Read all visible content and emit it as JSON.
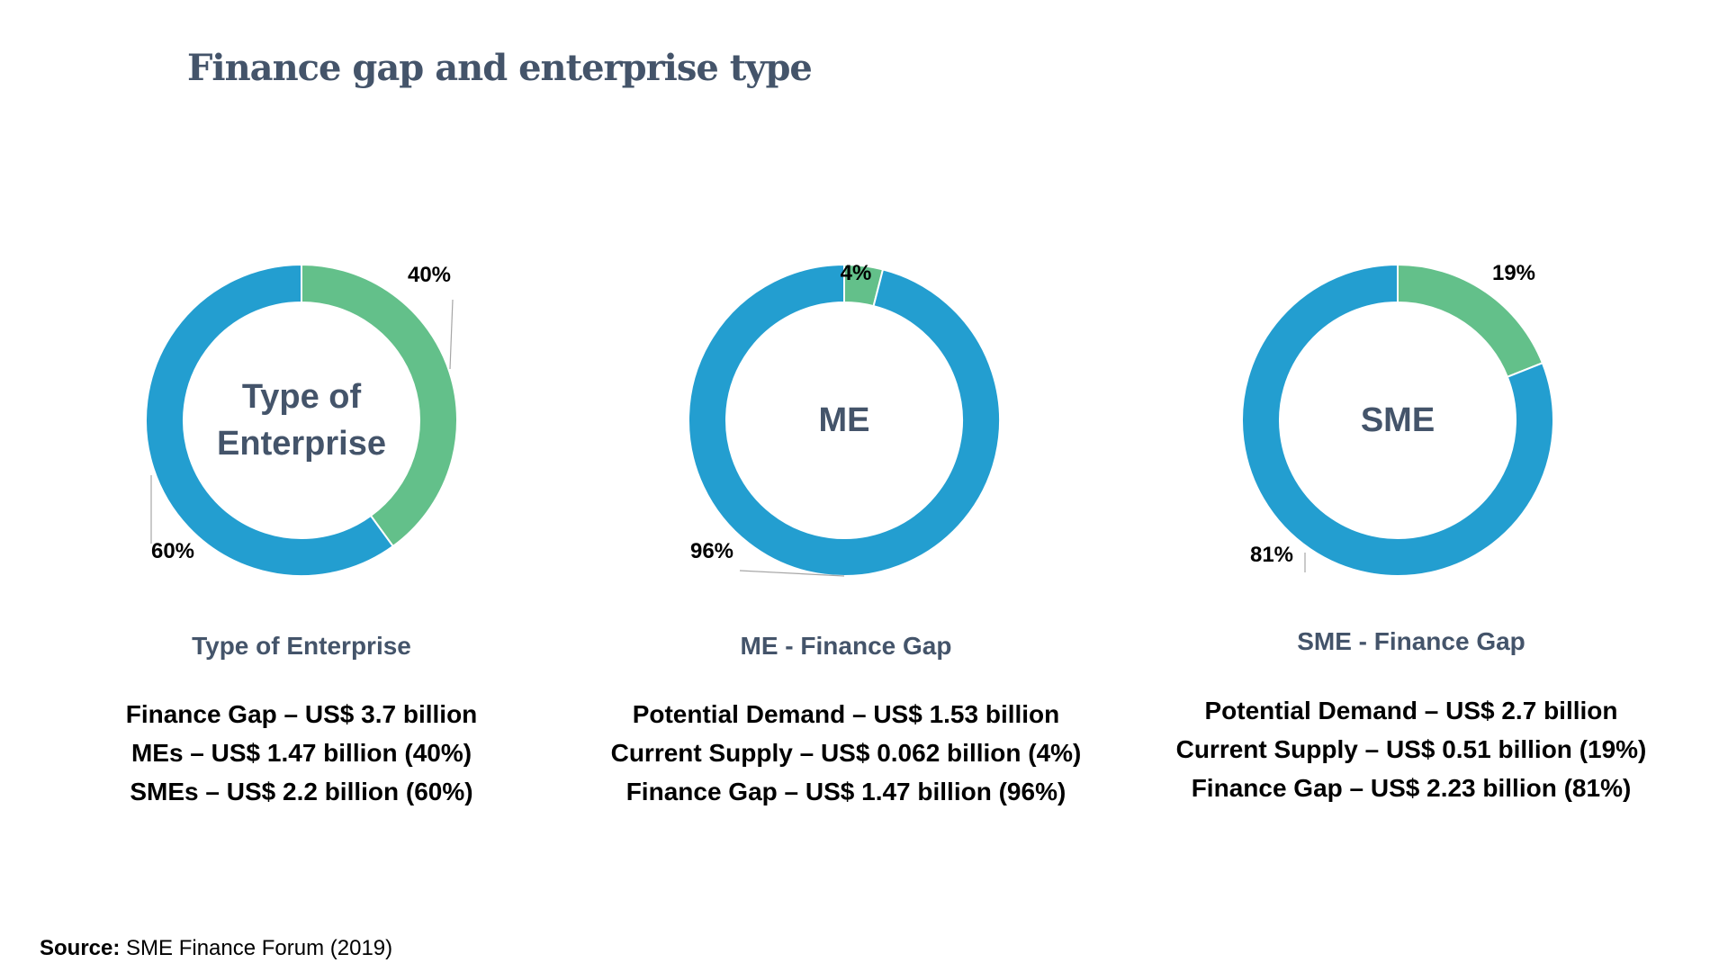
{
  "page": {
    "title": "Finance gap and enterprise type",
    "source_label": "Source:",
    "source_text": " SME Finance Forum (2019)"
  },
  "colors": {
    "blue": "#239ed0",
    "green": "#63c08a",
    "title": "#44546a",
    "center_text": "#44546a"
  },
  "chart_data": [
    {
      "type": "pie",
      "donut": true,
      "center_label_lines": [
        "Type of",
        "Enterprise"
      ],
      "title": "Type of Enterprise",
      "slices": [
        {
          "value": 40,
          "label": "40%",
          "color": "#63c08a"
        },
        {
          "value": 60,
          "label": "60%",
          "color": "#239ed0"
        }
      ],
      "summary": [
        "Finance Gap – US$ 3.7 billion",
        "MEs – US$ 1.47 billion (40%)",
        "SMEs – US$ 2.2 billion (60%)"
      ]
    },
    {
      "type": "pie",
      "donut": true,
      "center_label_lines": [
        "ME"
      ],
      "title": "ME - Finance Gap",
      "slices": [
        {
          "value": 4,
          "label": "4%",
          "color": "#63c08a"
        },
        {
          "value": 96,
          "label": "96%",
          "color": "#239ed0"
        }
      ],
      "summary": [
        "Potential Demand – US$ 1.53 billion",
        "Current Supply – US$ 0.062 billion (4%)",
        "Finance Gap – US$ 1.47 billion (96%)"
      ]
    },
    {
      "type": "pie",
      "donut": true,
      "center_label_lines": [
        "SME"
      ],
      "title": "SME - Finance Gap",
      "slices": [
        {
          "value": 19,
          "label": "19%",
          "color": "#63c08a"
        },
        {
          "value": 81,
          "label": "81%",
          "color": "#239ed0"
        }
      ],
      "summary": [
        "Potential Demand – US$ 2.7 billion",
        "Current Supply – US$ 0.51 billion (19%)",
        "Finance Gap – US$ 2.23 billion (81%)"
      ]
    }
  ]
}
